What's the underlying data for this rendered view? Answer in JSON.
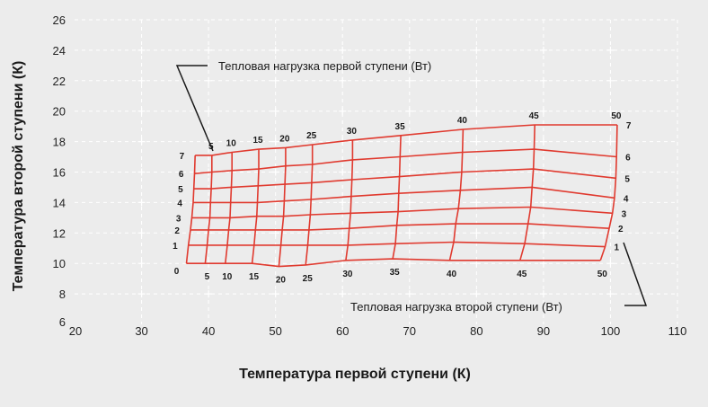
{
  "chart_data": {
    "type": "line",
    "xlabel": "Температура первой ступени (К)",
    "ylabel": "Температура второй ступени (К)",
    "xlim": [
      20,
      110
    ],
    "ylim": [
      6,
      26
    ],
    "xticks": [
      20,
      30,
      40,
      50,
      60,
      70,
      80,
      90,
      100,
      110
    ],
    "yticks": [
      6,
      8,
      10,
      12,
      14,
      16,
      18,
      20,
      22,
      24,
      26
    ],
    "grid": true,
    "color": "#e03a2f",
    "first_stage_loads": [
      0,
      5,
      10,
      15,
      20,
      25,
      30,
      35,
      40,
      45,
      50
    ],
    "second_stage_loads": [
      0,
      1,
      2,
      3,
      4,
      5,
      6,
      7
    ],
    "first_stage_load_label_values": [
      5,
      10,
      15,
      20,
      25,
      30,
      35,
      40,
      45,
      50
    ],
    "second_stage_load_label_values": [
      1,
      2,
      3,
      4,
      5,
      6,
      7
    ],
    "zero_label": "0",
    "annotations": {
      "first_stage": "Тепловая нагрузка первой ступени (Вт)",
      "second_stage": "Тепловая нагрузка второй ступени (Вт)"
    },
    "points": [
      {
        "x": [
          36.7,
          39.5,
          42.5,
          46.5,
          50.5,
          54.5,
          60.5,
          67.5,
          76.0,
          86.5,
          98.5
        ],
        "y": [
          10.0,
          10.0,
          10.0,
          10.0,
          9.8,
          9.9,
          10.2,
          10.3,
          10.2,
          10.2,
          10.2
        ]
      },
      {
        "x": [
          37.0,
          39.8,
          42.8,
          46.8,
          50.8,
          54.8,
          60.8,
          67.9,
          76.6,
          87.2,
          99.2
        ],
        "y": [
          11.2,
          11.2,
          11.2,
          11.2,
          11.2,
          11.2,
          11.2,
          11.3,
          11.4,
          11.3,
          11.1
        ]
      },
      {
        "x": [
          37.3,
          40.0,
          43.0,
          47.0,
          51.0,
          55.0,
          61.0,
          68.1,
          76.9,
          87.7,
          99.8
        ],
        "y": [
          12.2,
          12.2,
          12.2,
          12.2,
          12.2,
          12.2,
          12.3,
          12.5,
          12.6,
          12.6,
          12.3
        ]
      },
      {
        "x": [
          37.5,
          40.2,
          43.2,
          47.2,
          51.2,
          55.2,
          61.2,
          68.3,
          77.3,
          88.1,
          100.3
        ],
        "y": [
          13.0,
          13.0,
          13.0,
          13.1,
          13.1,
          13.2,
          13.3,
          13.4,
          13.6,
          13.7,
          13.3
        ]
      },
      {
        "x": [
          37.7,
          40.3,
          43.3,
          47.3,
          51.3,
          55.3,
          61.3,
          68.4,
          77.6,
          88.3,
          100.6
        ],
        "y": [
          14.0,
          14.0,
          14.0,
          14.0,
          14.1,
          14.2,
          14.4,
          14.6,
          14.8,
          15.0,
          14.3
        ]
      },
      {
        "x": [
          37.8,
          40.4,
          43.4,
          47.4,
          51.4,
          55.4,
          61.4,
          68.5,
          77.8,
          88.5,
          100.8
        ],
        "y": [
          14.9,
          14.9,
          15.0,
          15.1,
          15.2,
          15.3,
          15.5,
          15.7,
          16.0,
          16.2,
          15.6
        ]
      },
      {
        "x": [
          37.9,
          40.5,
          43.5,
          47.5,
          51.5,
          55.5,
          61.5,
          68.6,
          77.9,
          88.6,
          100.9
        ],
        "y": [
          15.9,
          16.0,
          16.1,
          16.2,
          16.4,
          16.5,
          16.8,
          17.0,
          17.3,
          17.5,
          17.0
        ]
      },
      {
        "x": [
          38.0,
          40.5,
          43.5,
          47.5,
          51.5,
          55.5,
          61.5,
          68.7,
          78.0,
          88.7,
          101.0
        ],
        "y": [
          17.1,
          17.1,
          17.3,
          17.5,
          17.6,
          17.8,
          18.1,
          18.4,
          18.8,
          19.1,
          19.1
        ]
      }
    ]
  }
}
